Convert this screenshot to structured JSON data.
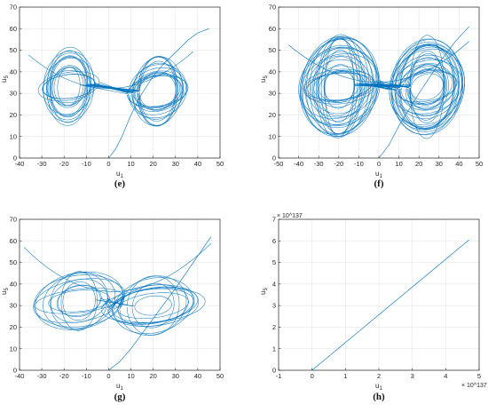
{
  "chart_data": [
    {
      "type": "line",
      "panel_label": "(e)",
      "xlabel": "u",
      "xlabel_sub": "1",
      "ylabel": "u",
      "ylabel_sub": "5",
      "xlim": [
        -40,
        50
      ],
      "ylim": [
        0,
        70
      ],
      "x_ticks": [
        "-40",
        "-30",
        "-20",
        "-10",
        "0",
        "10",
        "20",
        "30",
        "40",
        "50"
      ],
      "y_ticks": [
        "0",
        "10",
        "20",
        "30",
        "40",
        "50",
        "60",
        "70"
      ],
      "grid": true,
      "color": "#0072BD",
      "series": [
        {
          "description": "Chaotic trajectory with double-lobed butterfly attractor",
          "x": [
            0,
            3,
            6,
            10,
            15,
            20,
            25,
            30,
            36,
            40,
            45
          ],
          "y": [
            0,
            4,
            10,
            20,
            30,
            38,
            44,
            49,
            55,
            58,
            60
          ],
          "attractor": {
            "loops": 16,
            "left_center": [
              -20,
              33
            ],
            "right_center": [
              22,
              31
            ],
            "x_span": [
              -36,
              38
            ],
            "y_span": [
              14,
              52
            ]
          }
        }
      ]
    },
    {
      "type": "line",
      "panel_label": "(f)",
      "xlabel": "u",
      "xlabel_sub": "1",
      "ylabel": "u",
      "ylabel_sub": "5",
      "xlim": [
        -50,
        50
      ],
      "ylim": [
        0,
        70
      ],
      "x_ticks": [
        "-50",
        "-40",
        "-30",
        "-20",
        "-10",
        "0",
        "10",
        "20",
        "30",
        "40",
        "50"
      ],
      "y_ticks": [
        "0",
        "10",
        "20",
        "30",
        "40",
        "50",
        "60",
        "70"
      ],
      "grid": true,
      "color": "#0072BD",
      "series": [
        {
          "description": "Dense chaotic trajectory",
          "x": [
            0,
            5,
            10,
            20,
            30,
            38,
            45
          ],
          "y": [
            0,
            6,
            15,
            30,
            44,
            54,
            61
          ],
          "attractor": {
            "loops": 28,
            "left_center": [
              -22,
              33
            ],
            "right_center": [
              24,
              33
            ],
            "x_span": [
              -45,
              45
            ],
            "y_span": [
              8,
              57
            ]
          }
        }
      ]
    },
    {
      "type": "line",
      "panel_label": "(g)",
      "xlabel": "u",
      "xlabel_sub": "1",
      "ylabel": "u",
      "ylabel_sub": "5",
      "xlim": [
        -40,
        50
      ],
      "ylim": [
        0,
        70
      ],
      "x_ticks": [
        "-40",
        "-30",
        "-20",
        "-10",
        "0",
        "10",
        "20",
        "30",
        "40",
        "50"
      ],
      "y_ticks": [
        "0",
        "10",
        "20",
        "30",
        "40",
        "50",
        "60",
        "70"
      ],
      "grid": true,
      "color": "#0072BD",
      "series": [
        {
          "description": "Chaotic trajectory with a wide V-shaped envelope",
          "x": [
            0,
            5,
            10,
            20,
            30,
            38,
            46
          ],
          "y": [
            0,
            4,
            10,
            24,
            38,
            50,
            62
          ],
          "attractor": {
            "loops": 12,
            "left_center": [
              -15,
              32
            ],
            "right_center": [
              20,
              30
            ],
            "x_span": [
              -38,
              46
            ],
            "y_span": [
              16,
              62
            ]
          }
        }
      ]
    },
    {
      "type": "line",
      "panel_label": "(h)",
      "xlabel": "u",
      "xlabel_sub": "1",
      "ylabel": "u",
      "ylabel_sub": "5",
      "x_exponent": "× 10^137",
      "y_exponent": "× 10^137",
      "xlim": [
        -1,
        5
      ],
      "ylim": [
        0,
        7
      ],
      "x_ticks": [
        "-1",
        "0",
        "1",
        "2",
        "3",
        "4",
        "5"
      ],
      "y_ticks": [
        "0",
        "1",
        "2",
        "3",
        "4",
        "5",
        "6",
        "7"
      ],
      "grid": true,
      "color": "#0072BD",
      "series": [
        {
          "x": [
            0,
            4.7
          ],
          "y": [
            0,
            6.05
          ]
        }
      ]
    }
  ]
}
